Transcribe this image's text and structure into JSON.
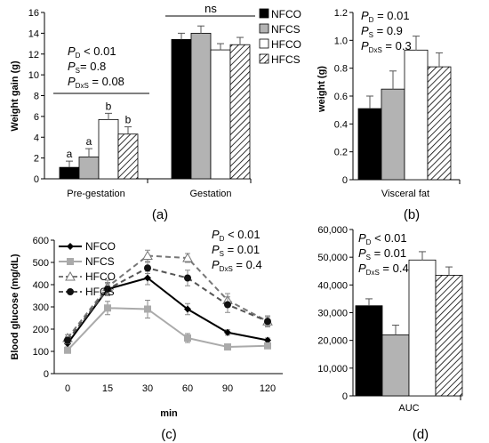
{
  "chart_data": [
    {
      "panel": "a",
      "type": "bar",
      "ylabel": "Weight gain (g)",
      "ylim": [
        0,
        16
      ],
      "yticks": [
        "0",
        "2",
        "4",
        "6",
        "8",
        "10",
        "12",
        "14",
        "16"
      ],
      "categories": [
        "Pre-gestation",
        "Gestation"
      ],
      "series": [
        {
          "name": "NFCO",
          "fill": "#000000",
          "values": [
            1.1,
            13.4
          ],
          "errors": [
            0.6,
            0.6
          ],
          "letters": [
            "a",
            ""
          ]
        },
        {
          "name": "NFCS",
          "fill": "#b3b3b3",
          "values": [
            2.1,
            14.0
          ],
          "errors": [
            0.8,
            0.7
          ],
          "letters": [
            "a",
            ""
          ]
        },
        {
          "name": "HFCO",
          "fill": "#ffffff",
          "values": [
            5.7,
            12.4
          ],
          "errors": [
            0.6,
            0.6
          ],
          "letters": [
            "b",
            ""
          ]
        },
        {
          "name": "HFCS",
          "fill": "hatch",
          "values": [
            4.3,
            12.9
          ],
          "errors": [
            0.7,
            0.7
          ],
          "letters": [
            "b",
            ""
          ]
        }
      ],
      "annotations": {
        "ns": "ns",
        "stats": [
          {
            "p": "P",
            "sub": "D",
            "rest": " < 0.01"
          },
          {
            "p": "P",
            "sub": "S",
            "rest": "= 0.8"
          },
          {
            "p": "P",
            "sub": "DxS",
            "rest": " = 0.08"
          }
        ]
      },
      "panel_label": "(a)",
      "legend": [
        "NFCO",
        "NFCS",
        "HFCO",
        "HFCS"
      ]
    },
    {
      "panel": "b",
      "type": "bar",
      "ylabel": "weight (g)",
      "ylim": [
        0,
        1.2
      ],
      "yticks": [
        "0",
        "0.2",
        "0.4",
        "0.6",
        "0.8",
        "1.0",
        "1.2"
      ],
      "categories": [
        "Visceral fat"
      ],
      "series": [
        {
          "name": "NFCO",
          "fill": "#000000",
          "values": [
            0.51
          ],
          "errors": [
            0.09
          ]
        },
        {
          "name": "NFCS",
          "fill": "#b3b3b3",
          "values": [
            0.65
          ],
          "errors": [
            0.13
          ]
        },
        {
          "name": "HFCO",
          "fill": "#ffffff",
          "values": [
            0.93
          ],
          "errors": [
            0.1
          ]
        },
        {
          "name": "HFCS",
          "fill": "hatch",
          "values": [
            0.81
          ],
          "errors": [
            0.1
          ]
        }
      ],
      "annotations": {
        "stats": [
          {
            "p": "P",
            "sub": "D",
            "rest": " = 0.01"
          },
          {
            "p": "P",
            "sub": "S",
            "rest": " = 0.9"
          },
          {
            "p": "P",
            "sub": "DxS",
            "rest": " = 0.3"
          }
        ]
      },
      "panel_label": "(b)"
    },
    {
      "panel": "c",
      "type": "line",
      "ylabel": "Blood glucose (mg/dL)",
      "xlabel": "min",
      "ylim": [
        0,
        600
      ],
      "yticks": [
        "0",
        "100",
        "200",
        "300",
        "400",
        "500",
        "600"
      ],
      "x": [
        0,
        15,
        30,
        60,
        90,
        120
      ],
      "xticks": [
        "0",
        "15",
        "30",
        "60",
        "90",
        "120"
      ],
      "series": [
        {
          "name": "NFCO",
          "color": "#000000",
          "dash": false,
          "marker": "diamond",
          "values": [
            135,
            380,
            430,
            290,
            185,
            150
          ],
          "errors": [
            15,
            25,
            30,
            25,
            12,
            10
          ]
        },
        {
          "name": "NFCS",
          "color": "#aaaaaa",
          "dash": false,
          "marker": "square",
          "values": [
            105,
            295,
            290,
            160,
            120,
            125
          ],
          "errors": [
            10,
            30,
            40,
            20,
            8,
            8
          ]
        },
        {
          "name": "HFCO",
          "color": "#777777",
          "dash": true,
          "marker": "triangle",
          "values": [
            160,
            390,
            530,
            520,
            330,
            235
          ],
          "errors": [
            15,
            30,
            25,
            20,
            30,
            25
          ]
        },
        {
          "name": "HFCS",
          "color": "#555555",
          "dash": true,
          "marker": "circle",
          "values": [
            150,
            380,
            475,
            430,
            310,
            235
          ],
          "errors": [
            15,
            30,
            25,
            35,
            35,
            20
          ]
        }
      ],
      "annotations": {
        "stats": [
          {
            "p": "P",
            "sub": "D",
            "rest": " < 0.01"
          },
          {
            "p": "P",
            "sub": "S",
            "rest": " = 0.01"
          },
          {
            "p": "P",
            "sub": "DxS",
            "rest": " = 0.4"
          }
        ]
      },
      "panel_label": "(c)",
      "legend": [
        "NFCO",
        "NFCS",
        "HFCO",
        "HFCS"
      ]
    },
    {
      "panel": "d",
      "type": "bar",
      "ylim": [
        0,
        60000
      ],
      "yticks": [
        "0",
        "10,000",
        "20,000",
        "30,000",
        "40,000",
        "50,000",
        "60,000"
      ],
      "categories": [
        "AUC"
      ],
      "series": [
        {
          "name": "NFCO",
          "fill": "#000000",
          "values": [
            32500
          ],
          "errors": [
            2500
          ]
        },
        {
          "name": "NFCS",
          "fill": "#b3b3b3",
          "values": [
            22000
          ],
          "errors": [
            3500
          ]
        },
        {
          "name": "HFCO",
          "fill": "#ffffff",
          "values": [
            49000
          ],
          "errors": [
            3000
          ]
        },
        {
          "name": "HFCS",
          "fill": "hatch",
          "values": [
            43500
          ],
          "errors": [
            3000
          ]
        }
      ],
      "annotations": {
        "stats": [
          {
            "p": "P",
            "sub": "D",
            "rest": " < 0.01"
          },
          {
            "p": "P",
            "sub": "S",
            "rest": " = 0.01"
          },
          {
            "p": "P",
            "sub": "DxS",
            "rest": " = 0.4"
          }
        ]
      },
      "panel_label": "(d)"
    }
  ]
}
